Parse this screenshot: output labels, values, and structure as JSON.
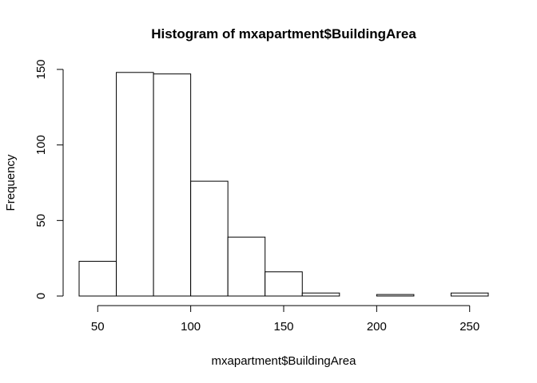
{
  "chart_data": {
    "type": "bar",
    "title": "Histogram of mxapartment$BuildingArea",
    "xlabel": "mxapartment$BuildingArea",
    "ylabel": "Frequency",
    "bins": [
      {
        "start": 40,
        "end": 60,
        "count": 23
      },
      {
        "start": 60,
        "end": 80,
        "count": 148
      },
      {
        "start": 80,
        "end": 100,
        "count": 147
      },
      {
        "start": 100,
        "end": 120,
        "count": 76
      },
      {
        "start": 120,
        "end": 140,
        "count": 39
      },
      {
        "start": 140,
        "end": 160,
        "count": 16
      },
      {
        "start": 160,
        "end": 180,
        "count": 2
      },
      {
        "start": 180,
        "end": 200,
        "count": 0
      },
      {
        "start": 200,
        "end": 220,
        "count": 1
      },
      {
        "start": 220,
        "end": 240,
        "count": 0
      },
      {
        "start": 240,
        "end": 260,
        "count": 2
      }
    ],
    "xticks": [
      50,
      100,
      150,
      200,
      250
    ],
    "xtick_labels": [
      "50",
      "100",
      "150",
      "200",
      "250"
    ],
    "yticks": [
      0,
      50,
      100,
      150
    ],
    "ytick_labels": [
      "0",
      "50",
      "100",
      "150"
    ],
    "xlim": [
      40,
      260
    ],
    "ylim": [
      0,
      150
    ],
    "grid": false,
    "colors": {
      "fill": "#ffffff",
      "stroke": "#000000"
    }
  }
}
